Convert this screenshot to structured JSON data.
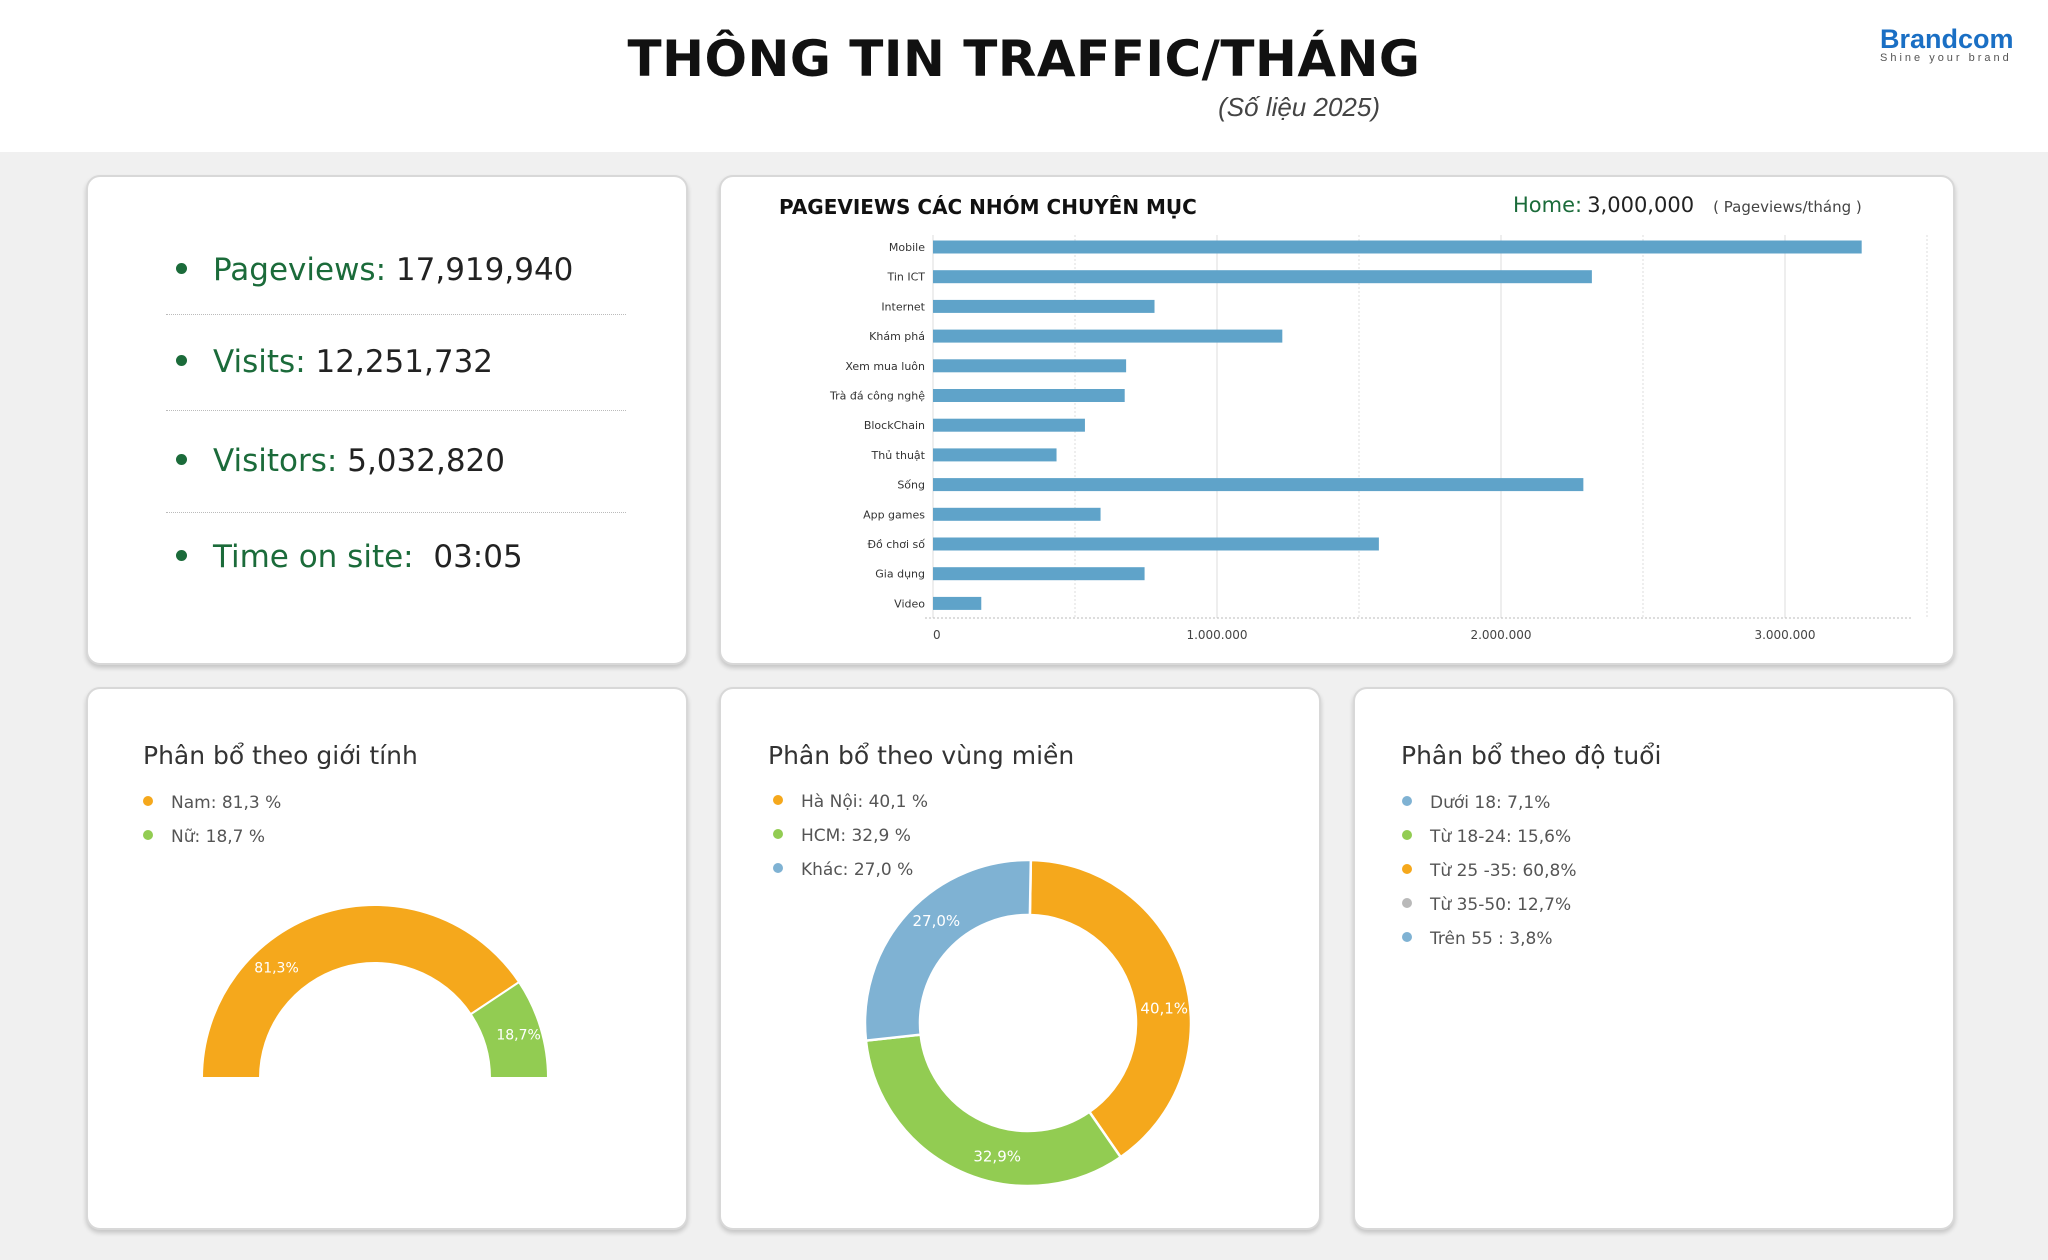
{
  "header": {
    "title": "THÔNG TIN TRAFFIC/THÁNG",
    "subtitle": "(Số liệu 2025)",
    "logo_name": "Brandcom",
    "logo_tagline": "Shine your brand"
  },
  "stats": {
    "pageviews": {
      "label": "Pageviews:",
      "value": "17,919,940"
    },
    "visits": {
      "label": "Visits:",
      "value": "12,251,732"
    },
    "visitors": {
      "label": "Visitors:",
      "value": "5,032,820"
    },
    "time_on_site": {
      "label": "Time on site:",
      "value": "03:05"
    }
  },
  "pageviews_panel": {
    "title": "PAGEVIEWS CÁC NHÓM CHUYÊN MỤC",
    "home_label": "Home:",
    "home_value": "3,000,000",
    "unit_note": "( Pageviews/tháng )"
  },
  "gender_panel": {
    "title": "Phân bổ theo giới tính",
    "legend": [
      "Nam: 81,3 %",
      "Nữ: 18,7 %"
    ],
    "labels": [
      "81,3%",
      "18,7%"
    ]
  },
  "region_panel": {
    "title": "Phân bổ theo vùng miền",
    "legend": [
      "Hà Nội: 40,1 %",
      "HCM: 32,9 %",
      "Khác: 27,0 %"
    ],
    "labels": [
      "40,1%",
      "32,9%",
      "27,0%"
    ]
  },
  "age_panel": {
    "title": "Phân bổ theo độ tuổi",
    "legend": [
      "Dưới 18: 7,1%",
      "Từ 18-24: 15,6%",
      "Từ 25 -35: 60,8%",
      "Từ 35-50: 12,7%",
      "Trên 55 : 3,8%"
    ]
  },
  "colors": {
    "accent_green": "#1b6b3a",
    "bar_blue": "#5fa3c9",
    "orange": "#f5a81c",
    "light_green": "#92cc52",
    "light_blue": "#7fb2d3",
    "gray": "#b9b9b9"
  },
  "chart_data": [
    {
      "type": "bar",
      "orientation": "horizontal",
      "categories": [
        "Mobile",
        "Tin ICT",
        "Internet",
        "Khám phá",
        "Xem mua luôn",
        "Trà đá công nghệ",
        "BlockChain",
        "Thủ thuật",
        "Sống",
        "App games",
        "Đồ chơi số",
        "Gia dụng",
        "Video"
      ],
      "values": [
        3270000,
        2320000,
        780000,
        1230000,
        680000,
        675000,
        535000,
        435000,
        2290000,
        590000,
        1570000,
        745000,
        170000
      ],
      "title": "PAGEVIEWS CÁC NHÓM CHUYÊN MỤC",
      "xlim": [
        0,
        3500000
      ],
      "x_tick_labels": [
        "0",
        "1.000.000",
        "2.000.000",
        "3.000.000"
      ],
      "x_tick_values": [
        0,
        1000000,
        2000000,
        3000000
      ],
      "grid": true
    },
    {
      "type": "pie",
      "style": "half-donut",
      "categories": [
        "Nam",
        "Nữ"
      ],
      "values": [
        81.3,
        18.7
      ],
      "title": "Phân bổ theo giới tính"
    },
    {
      "type": "pie",
      "style": "donut",
      "categories": [
        "Hà Nội",
        "HCM",
        "Khác"
      ],
      "values": [
        40.1,
        32.9,
        27.0
      ],
      "title": "Phân bổ theo vùng miền"
    },
    {
      "type": "pie",
      "style": "legend-only",
      "categories": [
        "Dưới 18",
        "Từ 18-24",
        "Từ 25 -35",
        "Từ 35-50",
        "Trên 55"
      ],
      "values": [
        7.1,
        15.6,
        60.8,
        12.7,
        3.8
      ],
      "title": "Phân bổ theo độ tuổi"
    }
  ]
}
